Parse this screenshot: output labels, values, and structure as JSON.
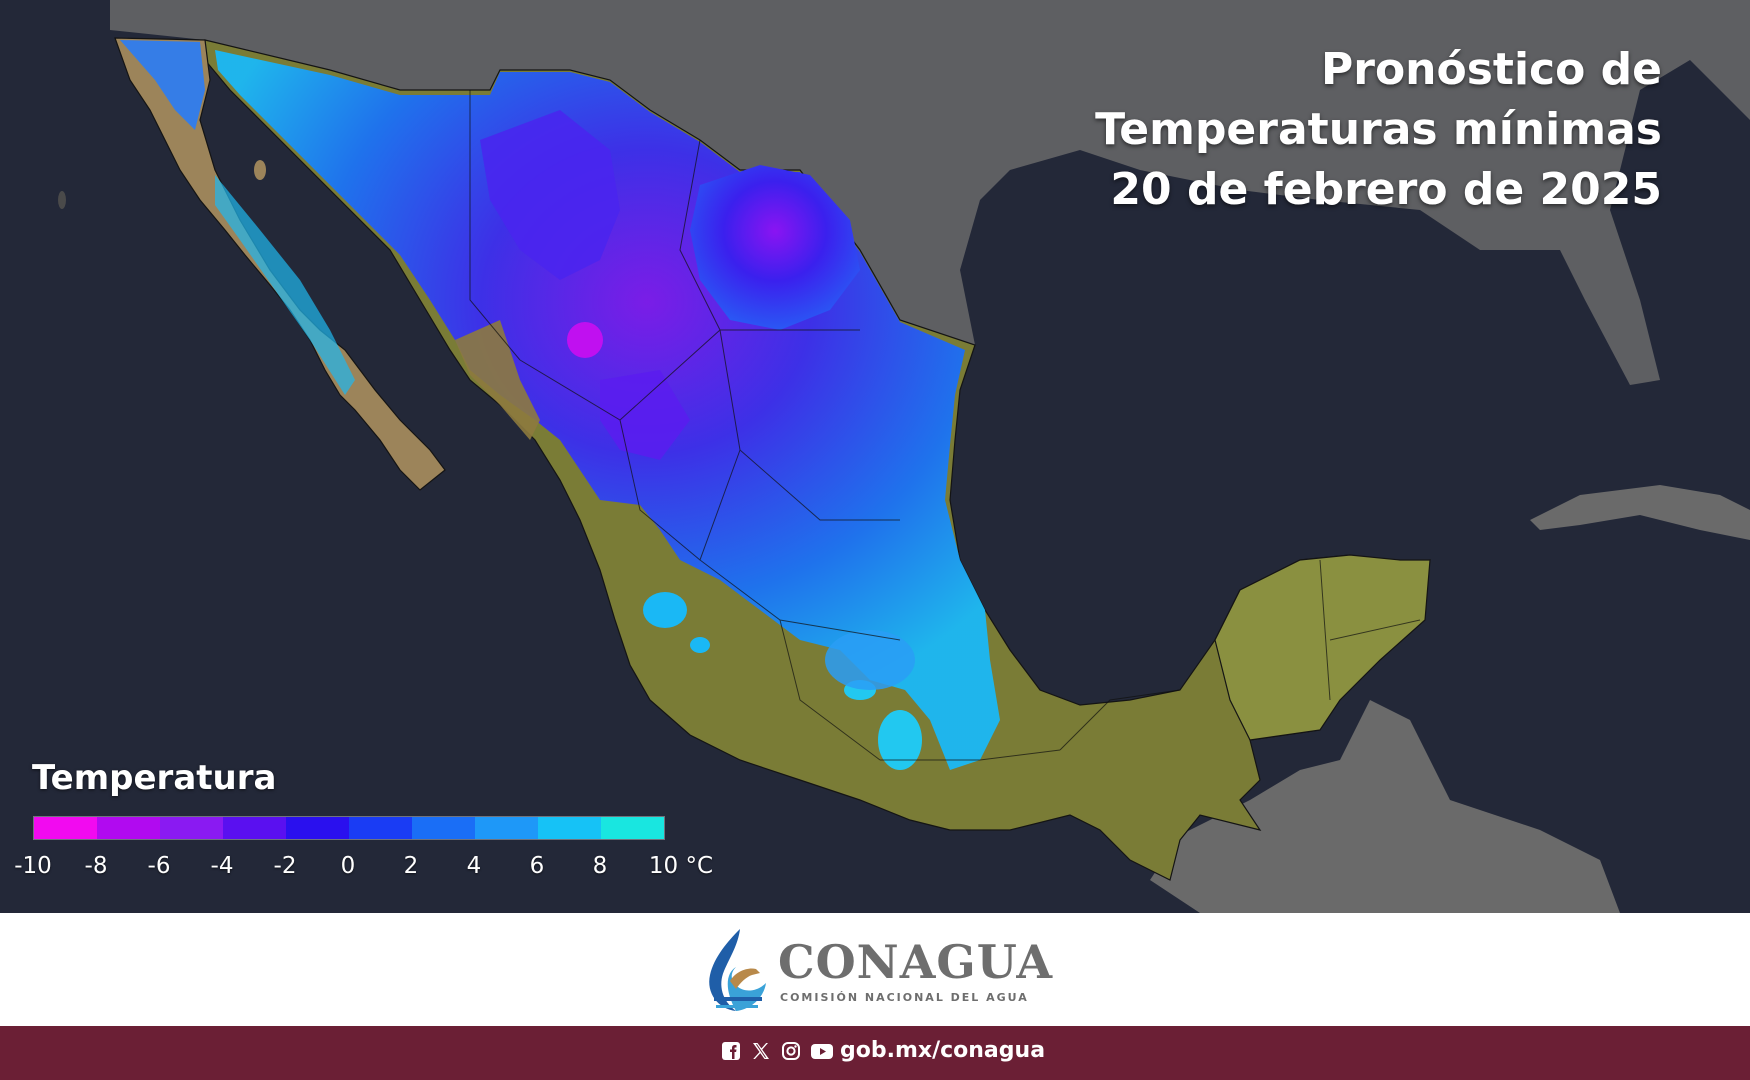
{
  "title": {
    "line1": "Pronóstico de",
    "line2": "Temperaturas mínimas",
    "line3": "20 de febrero de 2025"
  },
  "legend": {
    "title": "Temperatura",
    "colors": [
      "#f20af0",
      "#b10af0",
      "#8a1af2",
      "#5a10f0",
      "#2a10ee",
      "#1a3cf4",
      "#1a6ef6",
      "#1e98f8",
      "#16c2f6",
      "#19e6e0"
    ],
    "tick_labels": [
      "-10",
      "-8",
      "-6",
      "-4",
      "-2",
      "0",
      "2",
      "4",
      "6",
      "8",
      "10 °C"
    ]
  },
  "map": {
    "region": "Mexico",
    "land_color": "#7b7d3a",
    "sea_color": "#1f2433",
    "neighbor_land_color": "#6a6a6a"
  },
  "brand": {
    "name": "CONAGUA",
    "subtitle": "COMISIÓN NACIONAL DEL AGUA"
  },
  "footer": {
    "icons": [
      "facebook-icon",
      "x-icon",
      "instagram-icon",
      "youtube-icon"
    ],
    "url": "gob.mx/conagua"
  }
}
